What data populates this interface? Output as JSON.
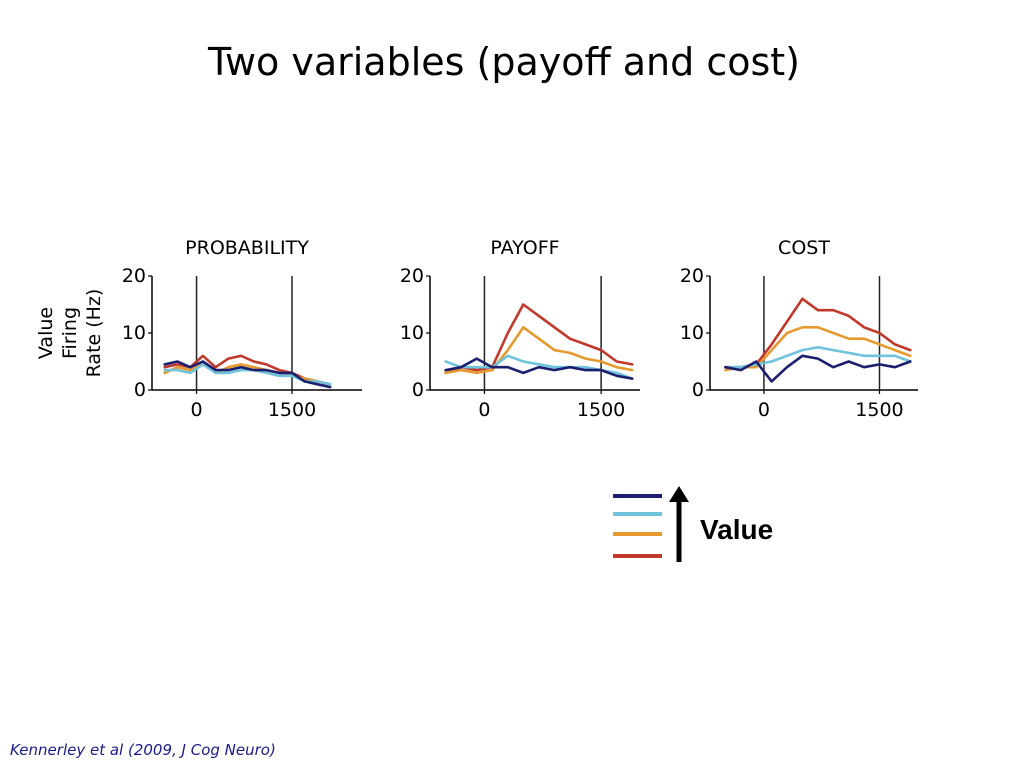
{
  "slide": {
    "title": "Two variables (payoff and cost)",
    "citation": "Kennerley et al (2009, J Cog Neuro)"
  },
  "legend": {
    "label": "Value",
    "arrow_direction": "up",
    "order_top_to_bottom": [
      "dark-blue",
      "light-blue",
      "orange",
      "red"
    ]
  },
  "colors": {
    "dark-blue": "#1b1f6e",
    "light-blue": "#6fc3dd",
    "orange": "#e69a2e",
    "red": "#c0392b"
  },
  "chart_data": [
    {
      "type": "line",
      "title": "PROBABILITY",
      "ylabel": [
        "Value",
        "Firing",
        "Rate (Hz)"
      ],
      "ylim": [
        0,
        20
      ],
      "yticks": [
        0,
        10,
        20
      ],
      "xlim": [
        -700,
        2600
      ],
      "xticks": [
        0,
        1500
      ],
      "vlines": [
        0,
        1500
      ],
      "x": [
        -500,
        -300,
        -100,
        100,
        300,
        500,
        700,
        900,
        1100,
        1300,
        1500,
        1700,
        1900,
        2100
      ],
      "series": [
        {
          "color": "red",
          "values": [
            4,
            4.5,
            4,
            6,
            4,
            5.5,
            6,
            5,
            4.5,
            3.5,
            3,
            2,
            1.5,
            1
          ]
        },
        {
          "color": "orange",
          "values": [
            3,
            4,
            3.5,
            5,
            3,
            4,
            4.5,
            4,
            3.5,
            3,
            2.5,
            2,
            1.5,
            1
          ]
        },
        {
          "color": "light-blue",
          "values": [
            3.5,
            3.5,
            3,
            4.5,
            3,
            3,
            3.5,
            3.5,
            3,
            2.5,
            2.5,
            1.5,
            1.5,
            1
          ]
        },
        {
          "color": "dark-blue",
          "values": [
            4.5,
            5,
            4,
            5,
            3.5,
            3.5,
            4,
            3.5,
            3.5,
            3,
            3,
            1.5,
            1,
            0.5
          ]
        }
      ]
    },
    {
      "type": "line",
      "title": "PAYOFF",
      "ylabel": [],
      "ylim": [
        0,
        20
      ],
      "yticks": [
        0,
        10,
        20
      ],
      "xlim": [
        -700,
        2000
      ],
      "xticks": [
        0,
        1500
      ],
      "vlines": [
        0,
        1500
      ],
      "x": [
        -500,
        -300,
        -100,
        100,
        300,
        500,
        700,
        900,
        1100,
        1300,
        1500,
        1700,
        1900
      ],
      "series": [
        {
          "color": "red",
          "values": [
            3,
            4,
            3.5,
            4,
            10,
            15,
            13,
            11,
            9,
            8,
            7,
            5,
            4.5
          ]
        },
        {
          "color": "orange",
          "values": [
            3,
            3.5,
            3,
            3.5,
            7,
            11,
            9,
            7,
            6.5,
            5.5,
            5,
            4,
            3.5
          ]
        },
        {
          "color": "light-blue",
          "values": [
            5,
            4,
            4,
            4,
            6,
            5,
            4.5,
            4,
            4,
            4,
            3.5,
            3,
            2
          ]
        },
        {
          "color": "dark-blue",
          "values": [
            3.5,
            4,
            5.5,
            4,
            4,
            3,
            4,
            3.5,
            4,
            3.5,
            3.5,
            2.5,
            2
          ]
        }
      ]
    },
    {
      "type": "line",
      "title": "COST",
      "ylabel": [],
      "ylim": [
        0,
        20
      ],
      "yticks": [
        0,
        10,
        20
      ],
      "xlim": [
        -700,
        2000
      ],
      "xticks": [
        0,
        1500
      ],
      "vlines": [
        0,
        1500
      ],
      "x": [
        -500,
        -300,
        -100,
        100,
        300,
        500,
        700,
        900,
        1100,
        1300,
        1500,
        1700,
        1900
      ],
      "series": [
        {
          "color": "red",
          "values": [
            4,
            4,
            4.5,
            8,
            12,
            16,
            14,
            14,
            13,
            11,
            10,
            8,
            7
          ]
        },
        {
          "color": "orange",
          "values": [
            3.5,
            4,
            4,
            7,
            10,
            11,
            11,
            10,
            9,
            9,
            8,
            7,
            6
          ]
        },
        {
          "color": "light-blue",
          "values": [
            4,
            4,
            4.5,
            5,
            6,
            7,
            7.5,
            7,
            6.5,
            6,
            6,
            6,
            5
          ]
        },
        {
          "color": "dark-blue",
          "values": [
            4,
            3.5,
            5,
            1.5,
            4,
            6,
            5.5,
            4,
            5,
            4,
            4.5,
            4,
            5
          ]
        }
      ]
    }
  ]
}
